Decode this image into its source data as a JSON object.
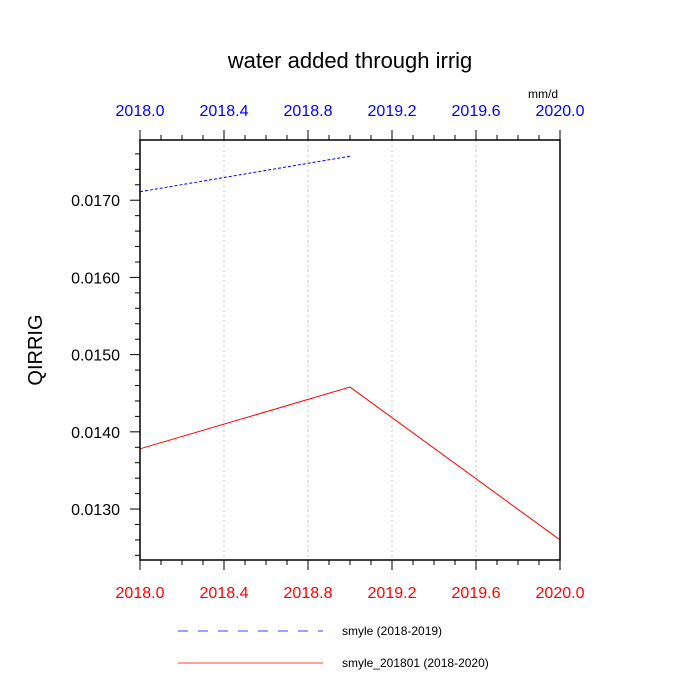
{
  "chart_data": {
    "type": "line",
    "title": "water added through irrig",
    "units": "mm/d",
    "ylabel": "QIRRIG",
    "xlim": [
      2018.0,
      2020.0
    ],
    "ylim": [
      0.01234,
      0.01778
    ],
    "x_ticks_top": [
      "2018.0",
      "2018.4",
      "2018.8",
      "2019.2",
      "2019.6",
      "2020.0"
    ],
    "x_ticks_bottom": [
      "2018.0",
      "2018.4",
      "2018.8",
      "2019.2",
      "2019.6",
      "2020.0"
    ],
    "y_ticks": [
      "0.0170",
      "0.0160",
      "0.0150",
      "0.0140",
      "0.0130"
    ],
    "grid": "vertical dotted",
    "legend_position": "bottom",
    "series": [
      {
        "name": "smyle (2018-2019)",
        "color": "#0000ff",
        "style": "dashed",
        "x": [
          2018.0,
          2019.0
        ],
        "y": [
          0.01711,
          0.01757
        ]
      },
      {
        "name": "smyle_201801 (2018-2020)",
        "color": "#ff0000",
        "style": "solid",
        "x": [
          2018.0,
          2019.0,
          2020.0
        ],
        "y": [
          0.01378,
          0.01458,
          0.0126
        ]
      }
    ]
  }
}
